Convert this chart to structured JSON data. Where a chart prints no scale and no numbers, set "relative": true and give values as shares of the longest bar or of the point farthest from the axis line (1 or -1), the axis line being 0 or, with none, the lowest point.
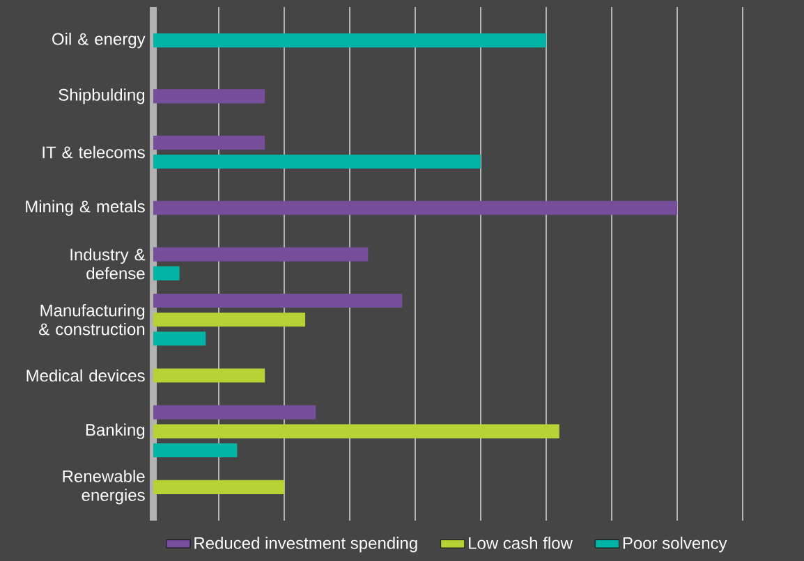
{
  "chart_data": {
    "type": "bar",
    "orientation": "horizontal",
    "relative": true,
    "grid": "x",
    "legend": "bottom",
    "categories": [
      "Oil & energy",
      "Shipbulding",
      "IT & telecoms",
      "Mining & metals",
      "Industry & defense",
      "Manufacturing & construction",
      "Medical devices",
      "Banking",
      "Renewable energies"
    ],
    "series": [
      {
        "name": "Reduced investment spending",
        "color": "#774e9c",
        "values": [
          null,
          0.213,
          0.213,
          1.0,
          0.41,
          0.475,
          null,
          0.31,
          null
        ]
      },
      {
        "name": "Low cash flow",
        "color": "#b5d334",
        "values": [
          null,
          null,
          null,
          null,
          null,
          0.29,
          0.213,
          0.775,
          0.25
        ]
      },
      {
        "name": "Poor solvency",
        "color": "#00b5a6",
        "values": [
          0.75,
          null,
          0.625,
          null,
          0.05,
          0.1,
          null,
          0.16,
          null
        ]
      }
    ]
  }
}
